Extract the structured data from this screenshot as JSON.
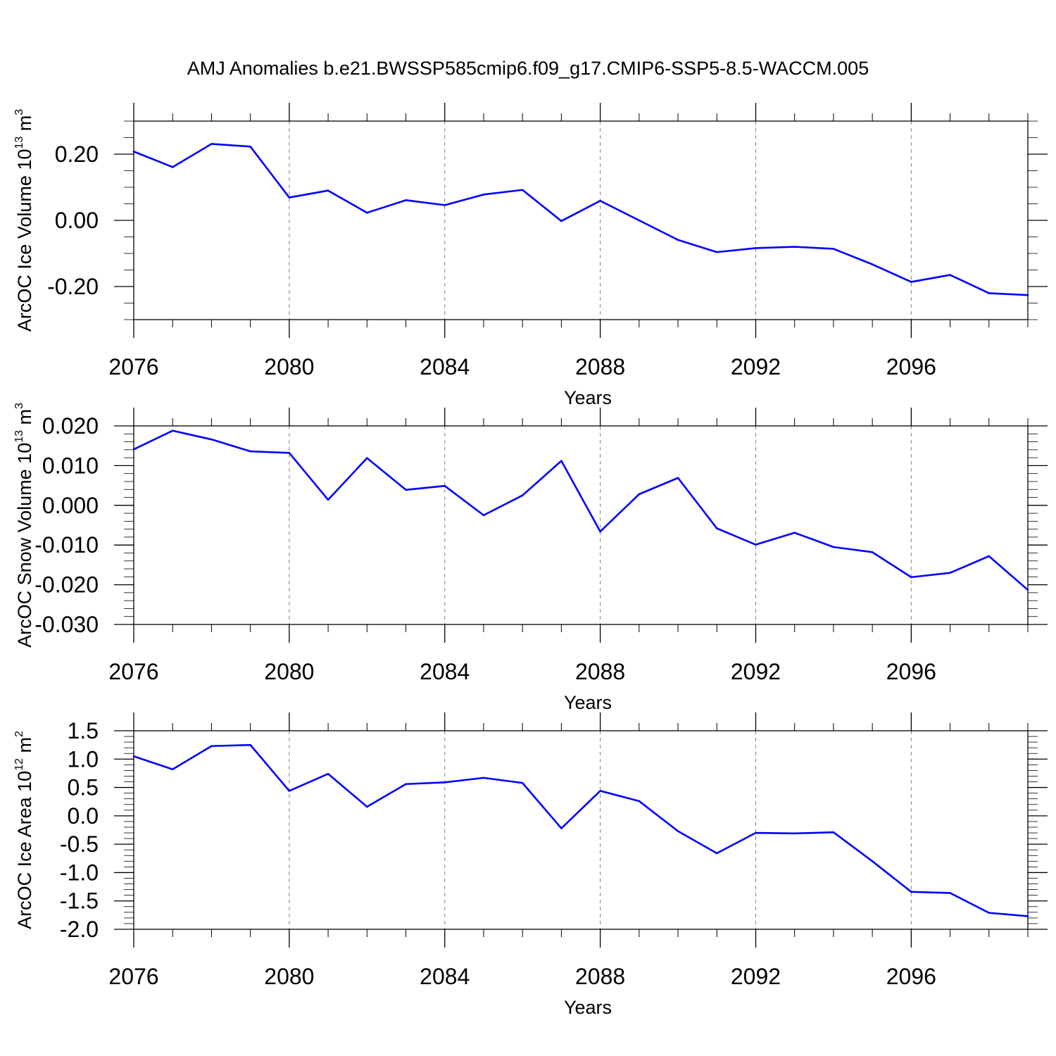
{
  "figure": {
    "title": "AMJ Anomalies b.e21.BWSSP585cmip6.f09_g17.CMIP6-SSP5-8.5-WACCM.005"
  },
  "colors": {
    "line": "#0000ff",
    "axis": "#000000",
    "grid": "#808080"
  },
  "chart_data": [
    {
      "type": "line",
      "ylabel_text": "ArcOC Ice Volume 10",
      "ylabel_exp": "13",
      "ylabel_unit": " m",
      "ylabel_unit_exp": "3",
      "xlabel": "Years",
      "xlim": [
        2076,
        2099
      ],
      "ylim": [
        -0.3,
        0.3
      ],
      "xticks": [
        2076,
        2080,
        2084,
        2088,
        2092,
        2096
      ],
      "yticks": [
        -0.2,
        0.0,
        0.2
      ],
      "ytick_labels": [
        "-0.20",
        "0.00",
        "0.20"
      ],
      "yminor_step": 0.05,
      "x": [
        2076,
        2077,
        2078,
        2079,
        2080,
        2081,
        2082,
        2083,
        2084,
        2085,
        2086,
        2087,
        2088,
        2089,
        2090,
        2091,
        2092,
        2093,
        2094,
        2095,
        2096,
        2097,
        2098,
        2099
      ],
      "series": [
        {
          "values": [
            0.208,
            0.161,
            0.231,
            0.223,
            0.069,
            0.09,
            0.023,
            0.061,
            0.046,
            0.078,
            0.092,
            -0.002,
            0.059,
            0.0,
            -0.059,
            -0.096,
            -0.084,
            -0.08,
            -0.086,
            -0.133,
            -0.186,
            -0.165,
            -0.22,
            -0.226
          ]
        }
      ]
    },
    {
      "type": "line",
      "ylabel_text": "ArcOC Snow Volume 10",
      "ylabel_exp": "13",
      "ylabel_unit": " m",
      "ylabel_unit_exp": "3",
      "xlabel": "Years",
      "xlim": [
        2076,
        2099
      ],
      "ylim": [
        -0.03,
        0.02
      ],
      "xticks": [
        2076,
        2080,
        2084,
        2088,
        2092,
        2096
      ],
      "yticks": [
        -0.03,
        -0.02,
        -0.01,
        0.0,
        0.01,
        0.02
      ],
      "ytick_labels": [
        "-0.030",
        "-0.020",
        "-0.010",
        "0.000",
        "0.010",
        "0.020"
      ],
      "yminor_step": 0.002,
      "x": [
        2076,
        2077,
        2078,
        2079,
        2080,
        2081,
        2082,
        2083,
        2084,
        2085,
        2086,
        2087,
        2088,
        2089,
        2090,
        2091,
        2092,
        2093,
        2094,
        2095,
        2096,
        2097,
        2098,
        2099
      ],
      "series": [
        {
          "values": [
            0.0141,
            0.0188,
            0.0166,
            0.0136,
            0.0132,
            0.0014,
            0.0119,
            0.0039,
            0.0049,
            -0.0025,
            0.0025,
            0.0112,
            -0.0066,
            0.0028,
            0.0069,
            -0.0058,
            -0.0099,
            -0.0069,
            -0.0105,
            -0.0118,
            -0.0181,
            -0.017,
            -0.0128,
            -0.0213
          ]
        }
      ]
    },
    {
      "type": "line",
      "ylabel_text": "ArcOC Ice Area 10",
      "ylabel_exp": "12",
      "ylabel_unit": " m",
      "ylabel_unit_exp": "2",
      "xlabel": "Years",
      "xlim": [
        2076,
        2099
      ],
      "ylim": [
        -2.0,
        1.5
      ],
      "xticks": [
        2076,
        2080,
        2084,
        2088,
        2092,
        2096
      ],
      "yticks": [
        -2.0,
        -1.5,
        -1.0,
        -0.5,
        0.0,
        0.5,
        1.0,
        1.5
      ],
      "ytick_labels": [
        "-2.0",
        "-1.5",
        "-1.0",
        "-0.5",
        "0.0",
        "0.5",
        "1.0",
        "1.5"
      ],
      "yminor_step": 0.1,
      "x": [
        2076,
        2077,
        2078,
        2079,
        2080,
        2081,
        2082,
        2083,
        2084,
        2085,
        2086,
        2087,
        2088,
        2089,
        2090,
        2091,
        2092,
        2093,
        2094,
        2095,
        2096,
        2097,
        2098,
        2099
      ],
      "series": [
        {
          "values": [
            1.05,
            0.82,
            1.23,
            1.25,
            0.44,
            0.74,
            0.16,
            0.56,
            0.59,
            0.67,
            0.58,
            -0.22,
            0.44,
            0.26,
            -0.27,
            -0.66,
            -0.3,
            -0.31,
            -0.29,
            -0.8,
            -1.34,
            -1.36,
            -1.71,
            -1.77
          ]
        }
      ]
    }
  ]
}
